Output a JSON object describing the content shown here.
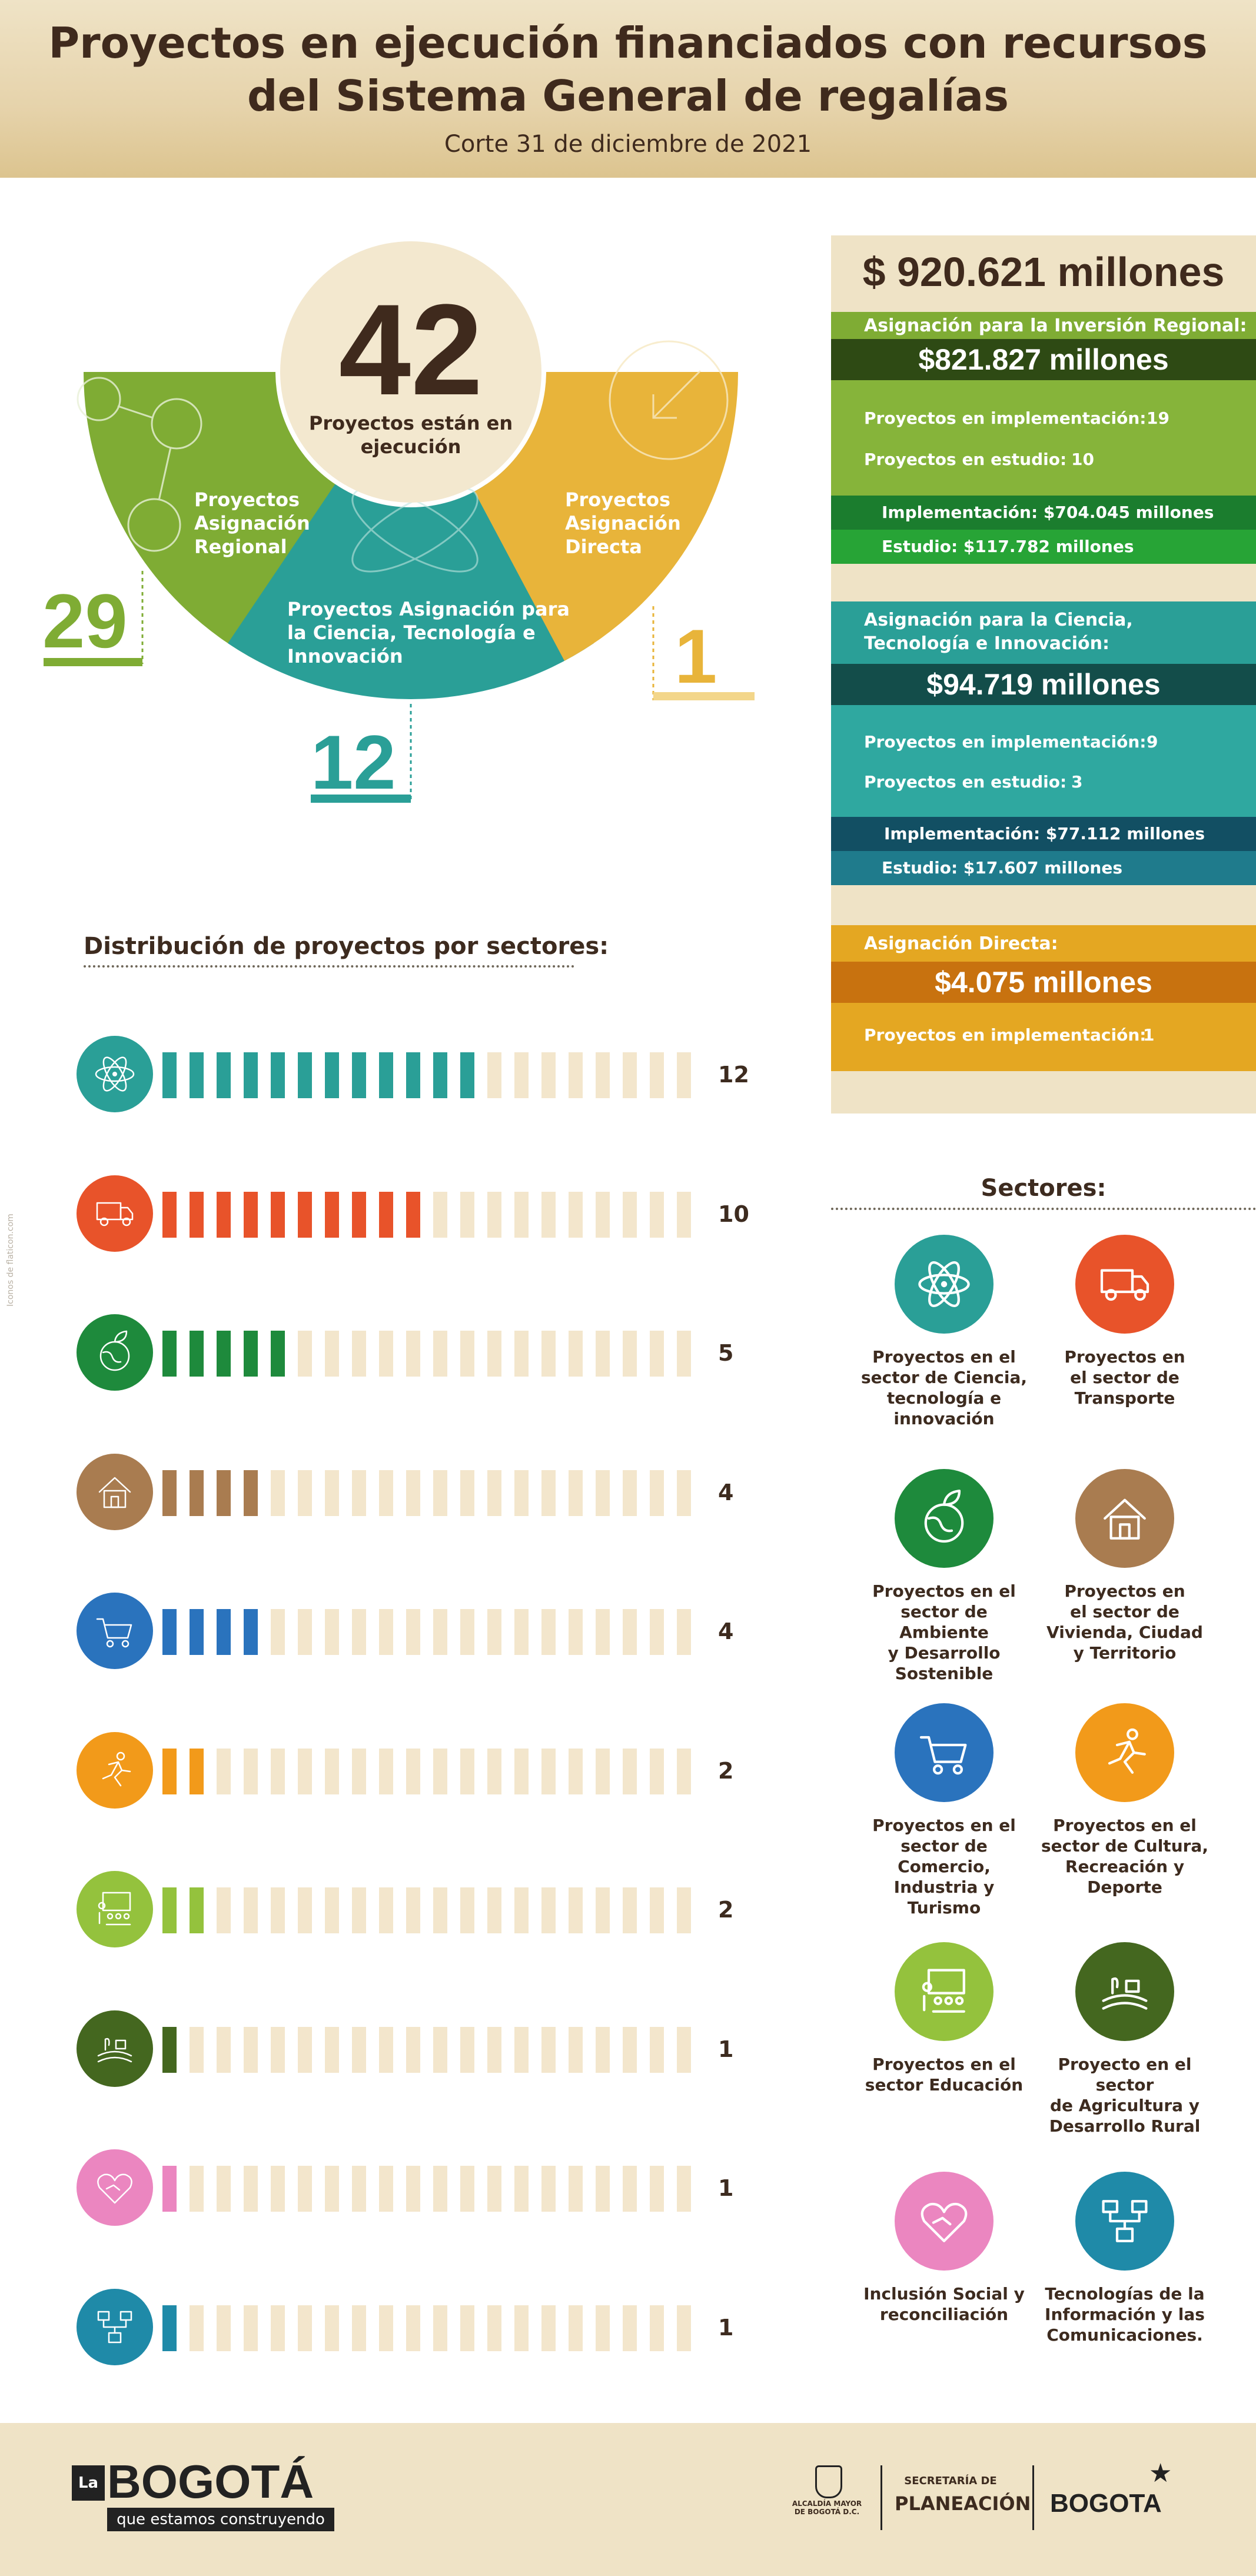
{
  "header": {
    "title_line1": "Proyectos en ejecución financiados con recursos",
    "title_line2": "del Sistema General de regalías",
    "subtitle": "Corte 31 de diciembre de 2021"
  },
  "hub": {
    "total": "42",
    "total_label_line1": "Proyectos están en",
    "total_label_line2": "ejecución",
    "regional": {
      "label_lines": [
        "Proyectos",
        "Asignación",
        "Regional"
      ],
      "count": "29",
      "color": "#7fac34"
    },
    "ciencia": {
      "label_lines": [
        "Proyectos Asignación para",
        "la Ciencia, Tecnología e",
        "Innovación"
      ],
      "count": "12",
      "color": "#2a9f97"
    },
    "directa": {
      "label_lines": [
        "Proyectos",
        "Asignación",
        "Directa"
      ],
      "count": "1",
      "color": "#e8b43a"
    }
  },
  "summary": {
    "total": "$ 920.621 millones",
    "regional": {
      "heading": "Asignación para la Inversión Regional:",
      "amount": "$821.827 millones",
      "impl_label": "Proyectos en implementación:",
      "impl_value": "19",
      "study_label": "Proyectos en estudio:",
      "study_value": "10",
      "impl_amount": "Implementación: $704.045 millones",
      "study_amount": "Estudio: $117.782 millones"
    },
    "ciencia": {
      "heading_line1": "Asignación para la Ciencia,",
      "heading_line2": "Tecnología e Innovación:",
      "amount": "$94.719 millones",
      "impl_label": "Proyectos en implementación:",
      "impl_value": "9",
      "study_label": "Proyectos en estudio:",
      "study_value": "3",
      "impl_amount": "Implementación: $77.112 millones",
      "study_amount": "Estudio: $17.607 millones"
    },
    "directa": {
      "heading": "Asignación Directa:",
      "amount": "$4.075 millones",
      "impl_label": "Proyectos en implementación:",
      "impl_value": "1"
    }
  },
  "distribution": {
    "title": "Distribución de proyectos por sectores:",
    "total_slots": 20,
    "rows": [
      {
        "icon": "atom-icon",
        "value": 12,
        "label": "12",
        "color": "#2a9f97"
      },
      {
        "icon": "truck-icon",
        "value": 10,
        "label": "10",
        "color": "#e8532a"
      },
      {
        "icon": "globe-leaf-icon",
        "value": 5,
        "label": "5",
        "color": "#1e8a3c"
      },
      {
        "icon": "house-icon",
        "value": 4,
        "label": "4",
        "color": "#a97c50"
      },
      {
        "icon": "cart-icon",
        "value": 4,
        "label": "4",
        "color": "#2a73bd"
      },
      {
        "icon": "runner-icon",
        "value": 2,
        "label": "2",
        "color": "#f29a1a"
      },
      {
        "icon": "classroom-icon",
        "value": 2,
        "label": "2",
        "color": "#94c23d"
      },
      {
        "icon": "farm-icon",
        "value": 1,
        "label": "1",
        "color": "#44671f"
      },
      {
        "icon": "heart-hands-icon",
        "value": 1,
        "label": "1",
        "color": "#eb86c0"
      },
      {
        "icon": "network-icon",
        "value": 1,
        "label": "1",
        "color": "#1f8aa8"
      }
    ]
  },
  "sectors": {
    "title": "Sectores:",
    "items": [
      {
        "icon": "atom-icon",
        "color": "#2a9f97",
        "lines": [
          "Proyectos en el",
          "sector de Ciencia,",
          "tecnología e",
          "innovación"
        ]
      },
      {
        "icon": "truck-icon",
        "color": "#e8532a",
        "lines": [
          "Proyectos en",
          "el sector de",
          "Transporte"
        ]
      },
      {
        "icon": "globe-leaf-icon",
        "color": "#1e8a3c",
        "lines": [
          "Proyectos en el",
          "sector de Ambiente",
          "y Desarrollo",
          "Sostenible"
        ]
      },
      {
        "icon": "house-icon",
        "color": "#a97c50",
        "lines": [
          "Proyectos en",
          "el sector de",
          "Vivienda, Ciudad",
          "y Territorio"
        ]
      },
      {
        "icon": "cart-icon",
        "color": "#2a73bd",
        "lines": [
          "Proyectos en el",
          "sector de Comercio,",
          "Industria y Turismo"
        ]
      },
      {
        "icon": "runner-icon",
        "color": "#f29a1a",
        "lines": [
          "Proyectos en el",
          "sector de Cultura,",
          "Recreación y",
          "Deporte"
        ]
      },
      {
        "icon": "classroom-icon",
        "color": "#94c23d",
        "lines": [
          "Proyectos en el",
          "sector Educación"
        ]
      },
      {
        "icon": "farm-icon",
        "color": "#44671f",
        "lines": [
          "Proyecto en el sector",
          "de Agricultura y",
          "Desarrollo Rural"
        ]
      },
      {
        "icon": "heart-hands-icon",
        "color": "#eb86c0",
        "lines": [
          "Inclusión Social y",
          "reconciliación"
        ]
      },
      {
        "icon": "network-icon",
        "color": "#1f8aa8",
        "lines": [
          "Tecnologías de la",
          "Información y las",
          "Comunicaciones."
        ]
      }
    ]
  },
  "side_credit": "Iconos de flaticon.com",
  "footer": {
    "logo_la": "La",
    "logo_bogota": "BOGOTÁ",
    "logo_tagline": "que estamos construyendo",
    "alcaldia": "ALCALDÍA MAYOR\nDE BOGOTÁ D.C.",
    "secretaria": "SECRETARÍA DE",
    "planeacion": "PLANEACIÓN",
    "bogota_brand": "BOGOTA"
  }
}
